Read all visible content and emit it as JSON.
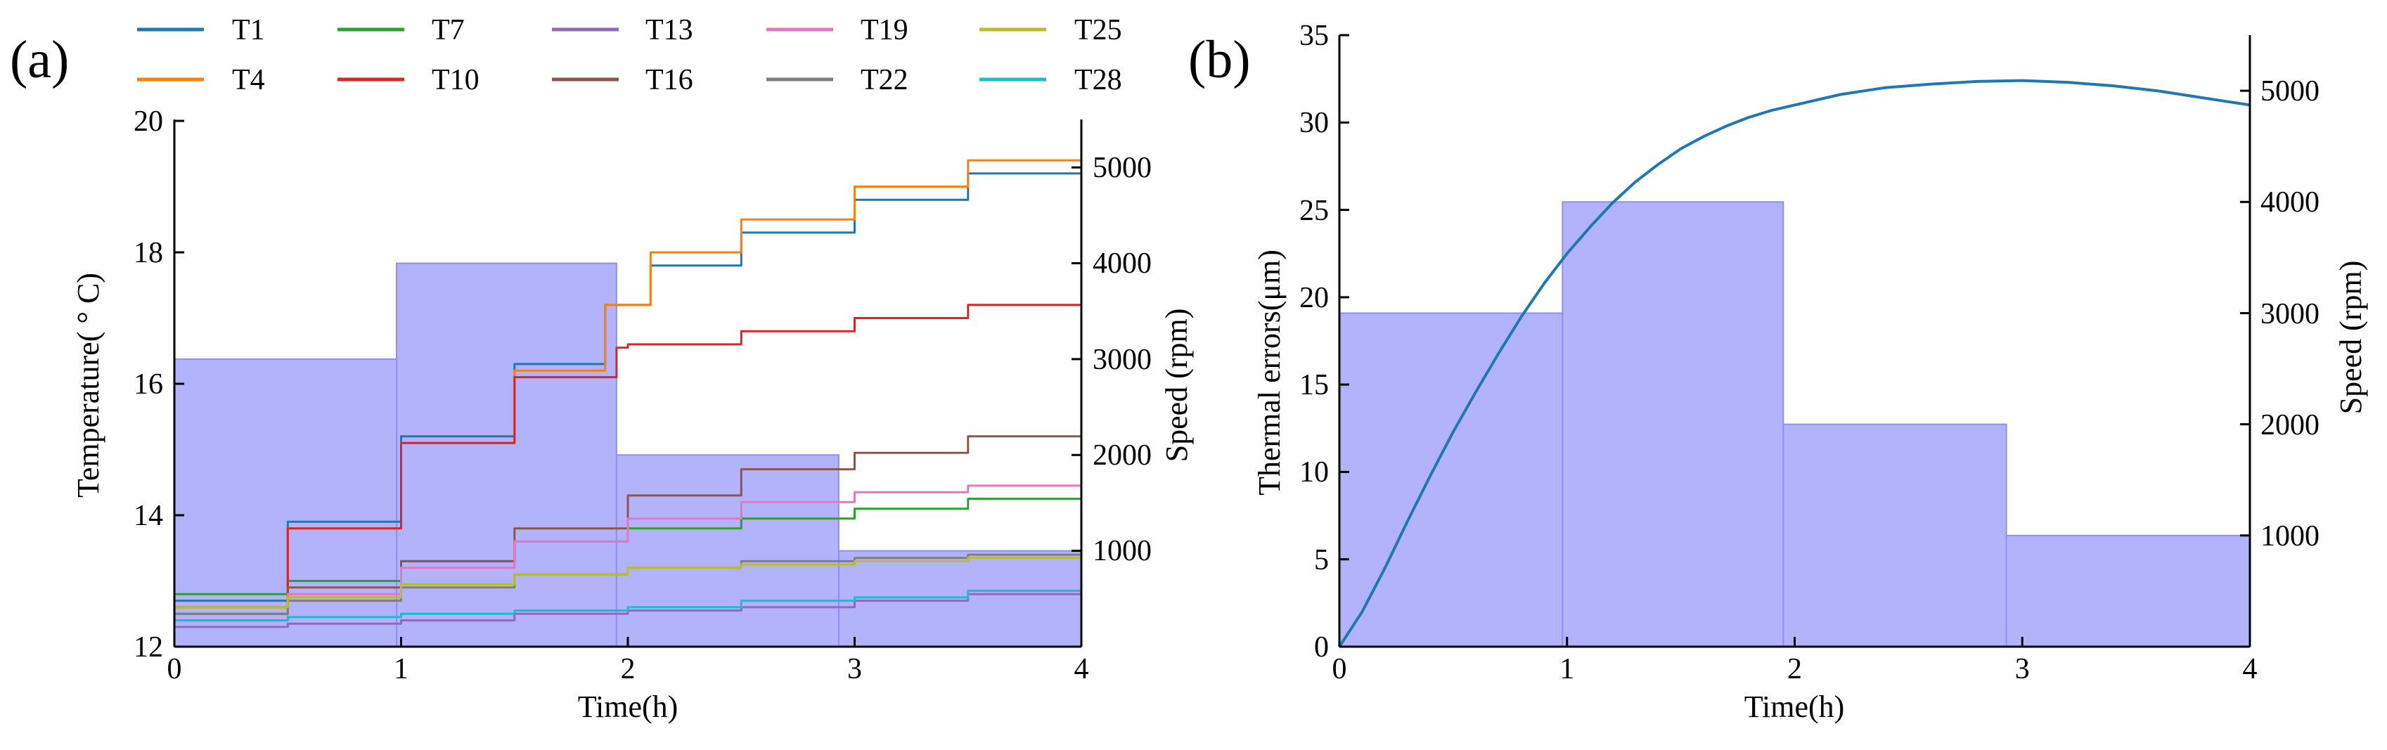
{
  "chart_data": [
    {
      "panel_label": "(a)",
      "type": "line",
      "xlabel": "Time(h)",
      "ylabel": "Temperature( ° C)",
      "y2label": "Speed (rpm)",
      "xlim": [
        0,
        4
      ],
      "ylim": [
        12,
        20
      ],
      "y2lim": [
        0,
        5500
      ],
      "xticks": [
        "0",
        "1",
        "2",
        "3",
        "4"
      ],
      "yticks": [
        "12",
        "14",
        "16",
        "18",
        "20"
      ],
      "y2ticks": [
        "1000",
        "2000",
        "3000",
        "4000",
        "5000"
      ],
      "legend_position": "top",
      "speed_profile": {
        "color": "#b3b3fb",
        "edge_color": "#8f8ff0",
        "steps": [
          {
            "t0": 0,
            "t1": 0.98,
            "rpm": 3000
          },
          {
            "t0": 0.98,
            "t1": 1.95,
            "rpm": 4000
          },
          {
            "t0": 1.95,
            "t1": 2.93,
            "rpm": 2000
          },
          {
            "t0": 2.93,
            "t1": 4,
            "rpm": 1000
          }
        ]
      },
      "series": [
        {
          "name": "T1",
          "color": "#1f77b4",
          "points": [
            [
              0,
              12.7
            ],
            [
              0.5,
              13.9
            ],
            [
              1,
              15.2
            ],
            [
              1.5,
              16.3
            ],
            [
              1.9,
              17.2
            ],
            [
              2.1,
              17.8
            ],
            [
              2.5,
              18.3
            ],
            [
              3,
              18.8
            ],
            [
              3.5,
              19.2
            ],
            [
              4,
              19.4
            ]
          ]
        },
        {
          "name": "T4",
          "color": "#ff7f0e",
          "points": [
            [
              0,
              12.6
            ],
            [
              0.5,
              13.8
            ],
            [
              1,
              15.1
            ],
            [
              1.5,
              16.2
            ],
            [
              1.9,
              17.2
            ],
            [
              2.1,
              18.0
            ],
            [
              2.5,
              18.5
            ],
            [
              3,
              19.0
            ],
            [
              3.5,
              19.4
            ],
            [
              4,
              19.6
            ]
          ]
        },
        {
          "name": "T7",
          "color": "#2ca02c",
          "points": [
            [
              0,
              12.8
            ],
            [
              0.5,
              13.0
            ],
            [
              1,
              13.3
            ],
            [
              1.5,
              13.6
            ],
            [
              2,
              13.8
            ],
            [
              2.5,
              13.95
            ],
            [
              3,
              14.1
            ],
            [
              3.5,
              14.25
            ],
            [
              4,
              14.3
            ]
          ]
        },
        {
          "name": "T10",
          "color": "#d62728",
          "points": [
            [
              0,
              12.5
            ],
            [
              0.5,
              13.8
            ],
            [
              1,
              15.1
            ],
            [
              1.5,
              16.1
            ],
            [
              1.95,
              16.55
            ],
            [
              2,
              16.6
            ],
            [
              2.5,
              16.8
            ],
            [
              3,
              17.0
            ],
            [
              3.5,
              17.2
            ],
            [
              4,
              17.4
            ]
          ]
        },
        {
          "name": "T13",
          "color": "#9467bd",
          "points": [
            [
              0,
              12.3
            ],
            [
              0.5,
              12.35
            ],
            [
              1,
              12.4
            ],
            [
              1.5,
              12.5
            ],
            [
              2,
              12.55
            ],
            [
              2.5,
              12.6
            ],
            [
              3,
              12.7
            ],
            [
              3.5,
              12.8
            ],
            [
              4,
              12.9
            ]
          ]
        },
        {
          "name": "T16",
          "color": "#8c564b",
          "points": [
            [
              0,
              12.6
            ],
            [
              0.5,
              12.9
            ],
            [
              1,
              13.3
            ],
            [
              1.5,
              13.8
            ],
            [
              2,
              14.3
            ],
            [
              2.5,
              14.7
            ],
            [
              3,
              14.95
            ],
            [
              3.5,
              15.2
            ],
            [
              4,
              15.4
            ]
          ]
        },
        {
          "name": "T19",
          "color": "#e377c2",
          "points": [
            [
              0,
              12.4
            ],
            [
              0.5,
              12.8
            ],
            [
              1,
              13.2
            ],
            [
              1.5,
              13.6
            ],
            [
              2,
              13.95
            ],
            [
              2.5,
              14.2
            ],
            [
              3,
              14.35
            ],
            [
              3.5,
              14.45
            ],
            [
              4,
              14.5
            ]
          ]
        },
        {
          "name": "T22",
          "color": "#7f7f7f",
          "points": [
            [
              0,
              12.5
            ],
            [
              0.5,
              12.7
            ],
            [
              1,
              12.9
            ],
            [
              1.5,
              13.1
            ],
            [
              2,
              13.2
            ],
            [
              2.5,
              13.3
            ],
            [
              3,
              13.35
            ],
            [
              3.5,
              13.4
            ],
            [
              4,
              13.5
            ]
          ]
        },
        {
          "name": "T25",
          "color": "#bcbd22",
          "points": [
            [
              0,
              12.6
            ],
            [
              0.5,
              12.75
            ],
            [
              1,
              12.95
            ],
            [
              1.5,
              13.1
            ],
            [
              2,
              13.2
            ],
            [
              2.5,
              13.25
            ],
            [
              3,
              13.3
            ],
            [
              3.5,
              13.35
            ],
            [
              4,
              13.4
            ]
          ]
        },
        {
          "name": "T28",
          "color": "#17becf",
          "points": [
            [
              0,
              12.4
            ],
            [
              0.5,
              12.45
            ],
            [
              1,
              12.5
            ],
            [
              1.5,
              12.55
            ],
            [
              2,
              12.6
            ],
            [
              2.5,
              12.7
            ],
            [
              3,
              12.75
            ],
            [
              3.5,
              12.85
            ],
            [
              4,
              12.95
            ]
          ]
        }
      ]
    },
    {
      "panel_label": "(b)",
      "type": "line",
      "xlabel": "Time(h)",
      "ylabel": "Thermal errors(μm)",
      "y2label": "Speed (rpm)",
      "xlim": [
        0,
        4
      ],
      "ylim": [
        0,
        35
      ],
      "y2lim": [
        0,
        5500
      ],
      "xticks": [
        "0",
        "1",
        "2",
        "3",
        "4"
      ],
      "yticks": [
        "0",
        "5",
        "10",
        "15",
        "20",
        "25",
        "30",
        "35"
      ],
      "y2ticks": [
        "1000",
        "2000",
        "3000",
        "4000",
        "5000"
      ],
      "speed_profile": {
        "color": "#b3b3fb",
        "edge_color": "#8f8ff0",
        "steps": [
          {
            "t0": 0,
            "t1": 0.98,
            "rpm": 3000
          },
          {
            "t0": 0.98,
            "t1": 1.95,
            "rpm": 4000
          },
          {
            "t0": 1.95,
            "t1": 2.93,
            "rpm": 2000
          },
          {
            "t0": 2.93,
            "t1": 4,
            "rpm": 1000
          }
        ]
      },
      "series": [
        {
          "name": "Thermal error",
          "color": "#1f77b4",
          "points": [
            [
              0,
              0
            ],
            [
              0.1,
              2
            ],
            [
              0.2,
              4.5
            ],
            [
              0.3,
              7.2
            ],
            [
              0.4,
              9.8
            ],
            [
              0.5,
              12.3
            ],
            [
              0.6,
              14.6
            ],
            [
              0.7,
              16.8
            ],
            [
              0.8,
              18.9
            ],
            [
              0.9,
              20.8
            ],
            [
              1,
              22.5
            ],
            [
              1.1,
              24.0
            ],
            [
              1.2,
              25.4
            ],
            [
              1.3,
              26.6
            ],
            [
              1.4,
              27.6
            ],
            [
              1.5,
              28.5
            ],
            [
              1.6,
              29.2
            ],
            [
              1.7,
              29.8
            ],
            [
              1.8,
              30.3
            ],
            [
              1.9,
              30.7
            ],
            [
              2,
              31.0
            ],
            [
              2.2,
              31.6
            ],
            [
              2.4,
              32.0
            ],
            [
              2.6,
              32.2
            ],
            [
              2.8,
              32.35
            ],
            [
              3,
              32.4
            ],
            [
              3.2,
              32.3
            ],
            [
              3.4,
              32.1
            ],
            [
              3.6,
              31.8
            ],
            [
              3.8,
              31.4
            ],
            [
              4,
              31.0
            ]
          ]
        }
      ]
    }
  ]
}
